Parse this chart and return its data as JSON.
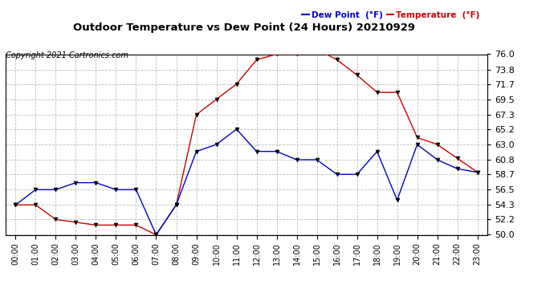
{
  "title": "Outdoor Temperature vs Dew Point (24 Hours) 20210929",
  "copyright": "Copyright 2021 Cartronics.com",
  "legend_dew": "Dew Point  (°F)",
  "legend_temp": "Temperature  (°F)",
  "hours": [
    "00:00",
    "01:00",
    "02:00",
    "03:00",
    "04:00",
    "05:00",
    "06:00",
    "07:00",
    "08:00",
    "09:00",
    "10:00",
    "11:00",
    "12:00",
    "13:00",
    "14:00",
    "15:00",
    "16:00",
    "17:00",
    "18:00",
    "19:00",
    "20:00",
    "21:00",
    "22:00",
    "23:00"
  ],
  "temperature": [
    54.3,
    54.3,
    52.2,
    51.8,
    51.4,
    51.4,
    51.4,
    50.0,
    54.3,
    67.3,
    69.5,
    71.7,
    75.2,
    76.0,
    76.0,
    76.7,
    75.2,
    73.0,
    70.5,
    70.5,
    64.0,
    63.0,
    61.0,
    59.0
  ],
  "dew_point": [
    54.3,
    56.5,
    56.5,
    57.5,
    57.5,
    56.5,
    56.5,
    50.0,
    54.3,
    62.0,
    63.0,
    65.2,
    62.0,
    62.0,
    60.8,
    60.8,
    58.7,
    58.7,
    62.0,
    55.0,
    63.0,
    60.8,
    59.5,
    59.0
  ],
  "ylim": [
    50.0,
    76.0
  ],
  "yticks": [
    50.0,
    52.2,
    54.3,
    56.5,
    58.7,
    60.8,
    63.0,
    65.2,
    67.3,
    69.5,
    71.7,
    73.8,
    76.0
  ],
  "temp_color": "#cc0000",
  "dew_color": "#0000cc",
  "background_color": "#ffffff",
  "grid_color": "#bbbbbb"
}
